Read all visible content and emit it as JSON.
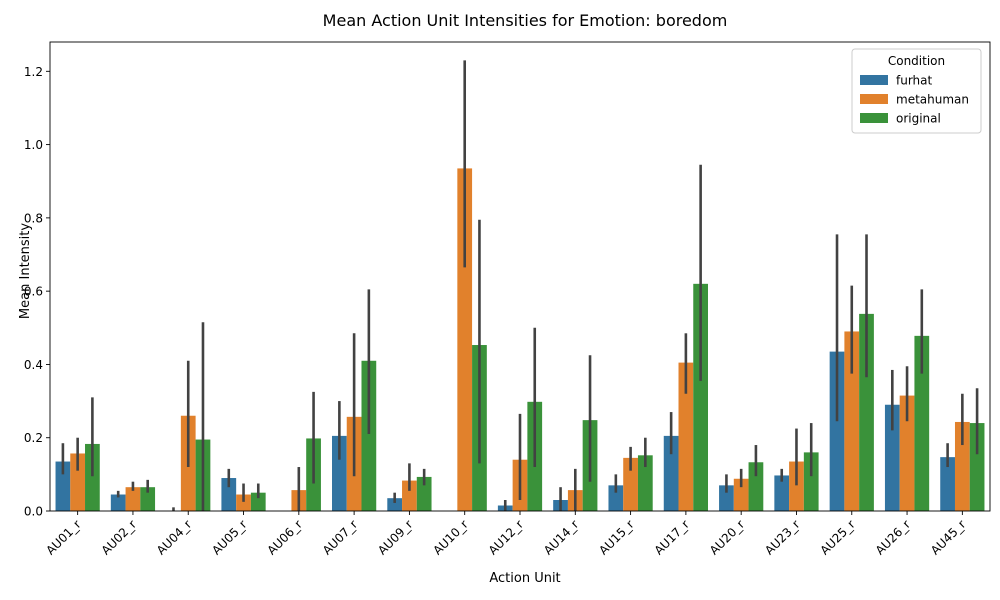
{
  "chart_data": {
    "type": "bar",
    "title": "Mean Action Unit Intensities for Emotion: boredom",
    "xlabel": "Action Unit",
    "ylabel": "Mean Intensity",
    "ylim": [
      0,
      1.28
    ],
    "yticks": [
      0.0,
      0.2,
      0.4,
      0.6,
      0.8,
      1.0,
      1.2
    ],
    "grid": false,
    "legend": {
      "title": "Condition",
      "position": "top-right"
    },
    "categories": [
      "AU01_r",
      "AU02_r",
      "AU04_r",
      "AU05_r",
      "AU06_r",
      "AU07_r",
      "AU09_r",
      "AU10_r",
      "AU12_r",
      "AU14_r",
      "AU15_r",
      "AU17_r",
      "AU20_r",
      "AU23_r",
      "AU25_r",
      "AU26_r",
      "AU45_r"
    ],
    "series": [
      {
        "name": "furhat",
        "color": "#3274a1",
        "values": [
          0.135,
          0.045,
          0.0,
          0.09,
          0.0,
          0.205,
          0.035,
          0.0,
          0.015,
          0.03,
          0.07,
          0.205,
          0.07,
          0.097,
          0.435,
          0.29,
          0.147
        ],
        "err_low": [
          0.1,
          0.037,
          0.0,
          0.065,
          0.0,
          0.14,
          0.022,
          0.0,
          0.0,
          0.0,
          0.05,
          0.155,
          0.05,
          0.08,
          0.245,
          0.22,
          0.12
        ],
        "err_high": [
          0.185,
          0.055,
          0.01,
          0.115,
          0.0,
          0.3,
          0.05,
          0.0,
          0.03,
          0.065,
          0.1,
          0.27,
          0.1,
          0.115,
          0.755,
          0.385,
          0.185
        ]
      },
      {
        "name": "metahuman",
        "color": "#e1812c",
        "values": [
          0.157,
          0.065,
          0.26,
          0.045,
          0.057,
          0.257,
          0.083,
          0.935,
          0.14,
          0.057,
          0.145,
          0.405,
          0.088,
          0.135,
          0.49,
          0.315,
          0.243
        ],
        "err_low": [
          0.11,
          0.055,
          0.12,
          0.025,
          0.0,
          0.095,
          0.055,
          0.665,
          0.03,
          0.0,
          0.11,
          0.32,
          0.065,
          0.07,
          0.375,
          0.245,
          0.18
        ],
        "err_high": [
          0.2,
          0.08,
          0.41,
          0.075,
          0.12,
          0.485,
          0.13,
          1.23,
          0.265,
          0.115,
          0.175,
          0.485,
          0.115,
          0.225,
          0.615,
          0.395,
          0.32
        ]
      },
      {
        "name": "original",
        "color": "#3a923a",
        "values": [
          0.183,
          0.065,
          0.195,
          0.05,
          0.198,
          0.41,
          0.093,
          0.453,
          0.298,
          0.248,
          0.152,
          0.62,
          0.133,
          0.16,
          0.538,
          0.478,
          0.24
        ],
        "err_low": [
          0.095,
          0.05,
          0.0,
          0.035,
          0.075,
          0.21,
          0.07,
          0.13,
          0.12,
          0.08,
          0.12,
          0.355,
          0.095,
          0.095,
          0.365,
          0.375,
          0.155
        ],
        "err_high": [
          0.31,
          0.085,
          0.515,
          0.075,
          0.325,
          0.605,
          0.115,
          0.795,
          0.5,
          0.425,
          0.2,
          0.945,
          0.18,
          0.24,
          0.755,
          0.605,
          0.335
        ]
      }
    ]
  }
}
